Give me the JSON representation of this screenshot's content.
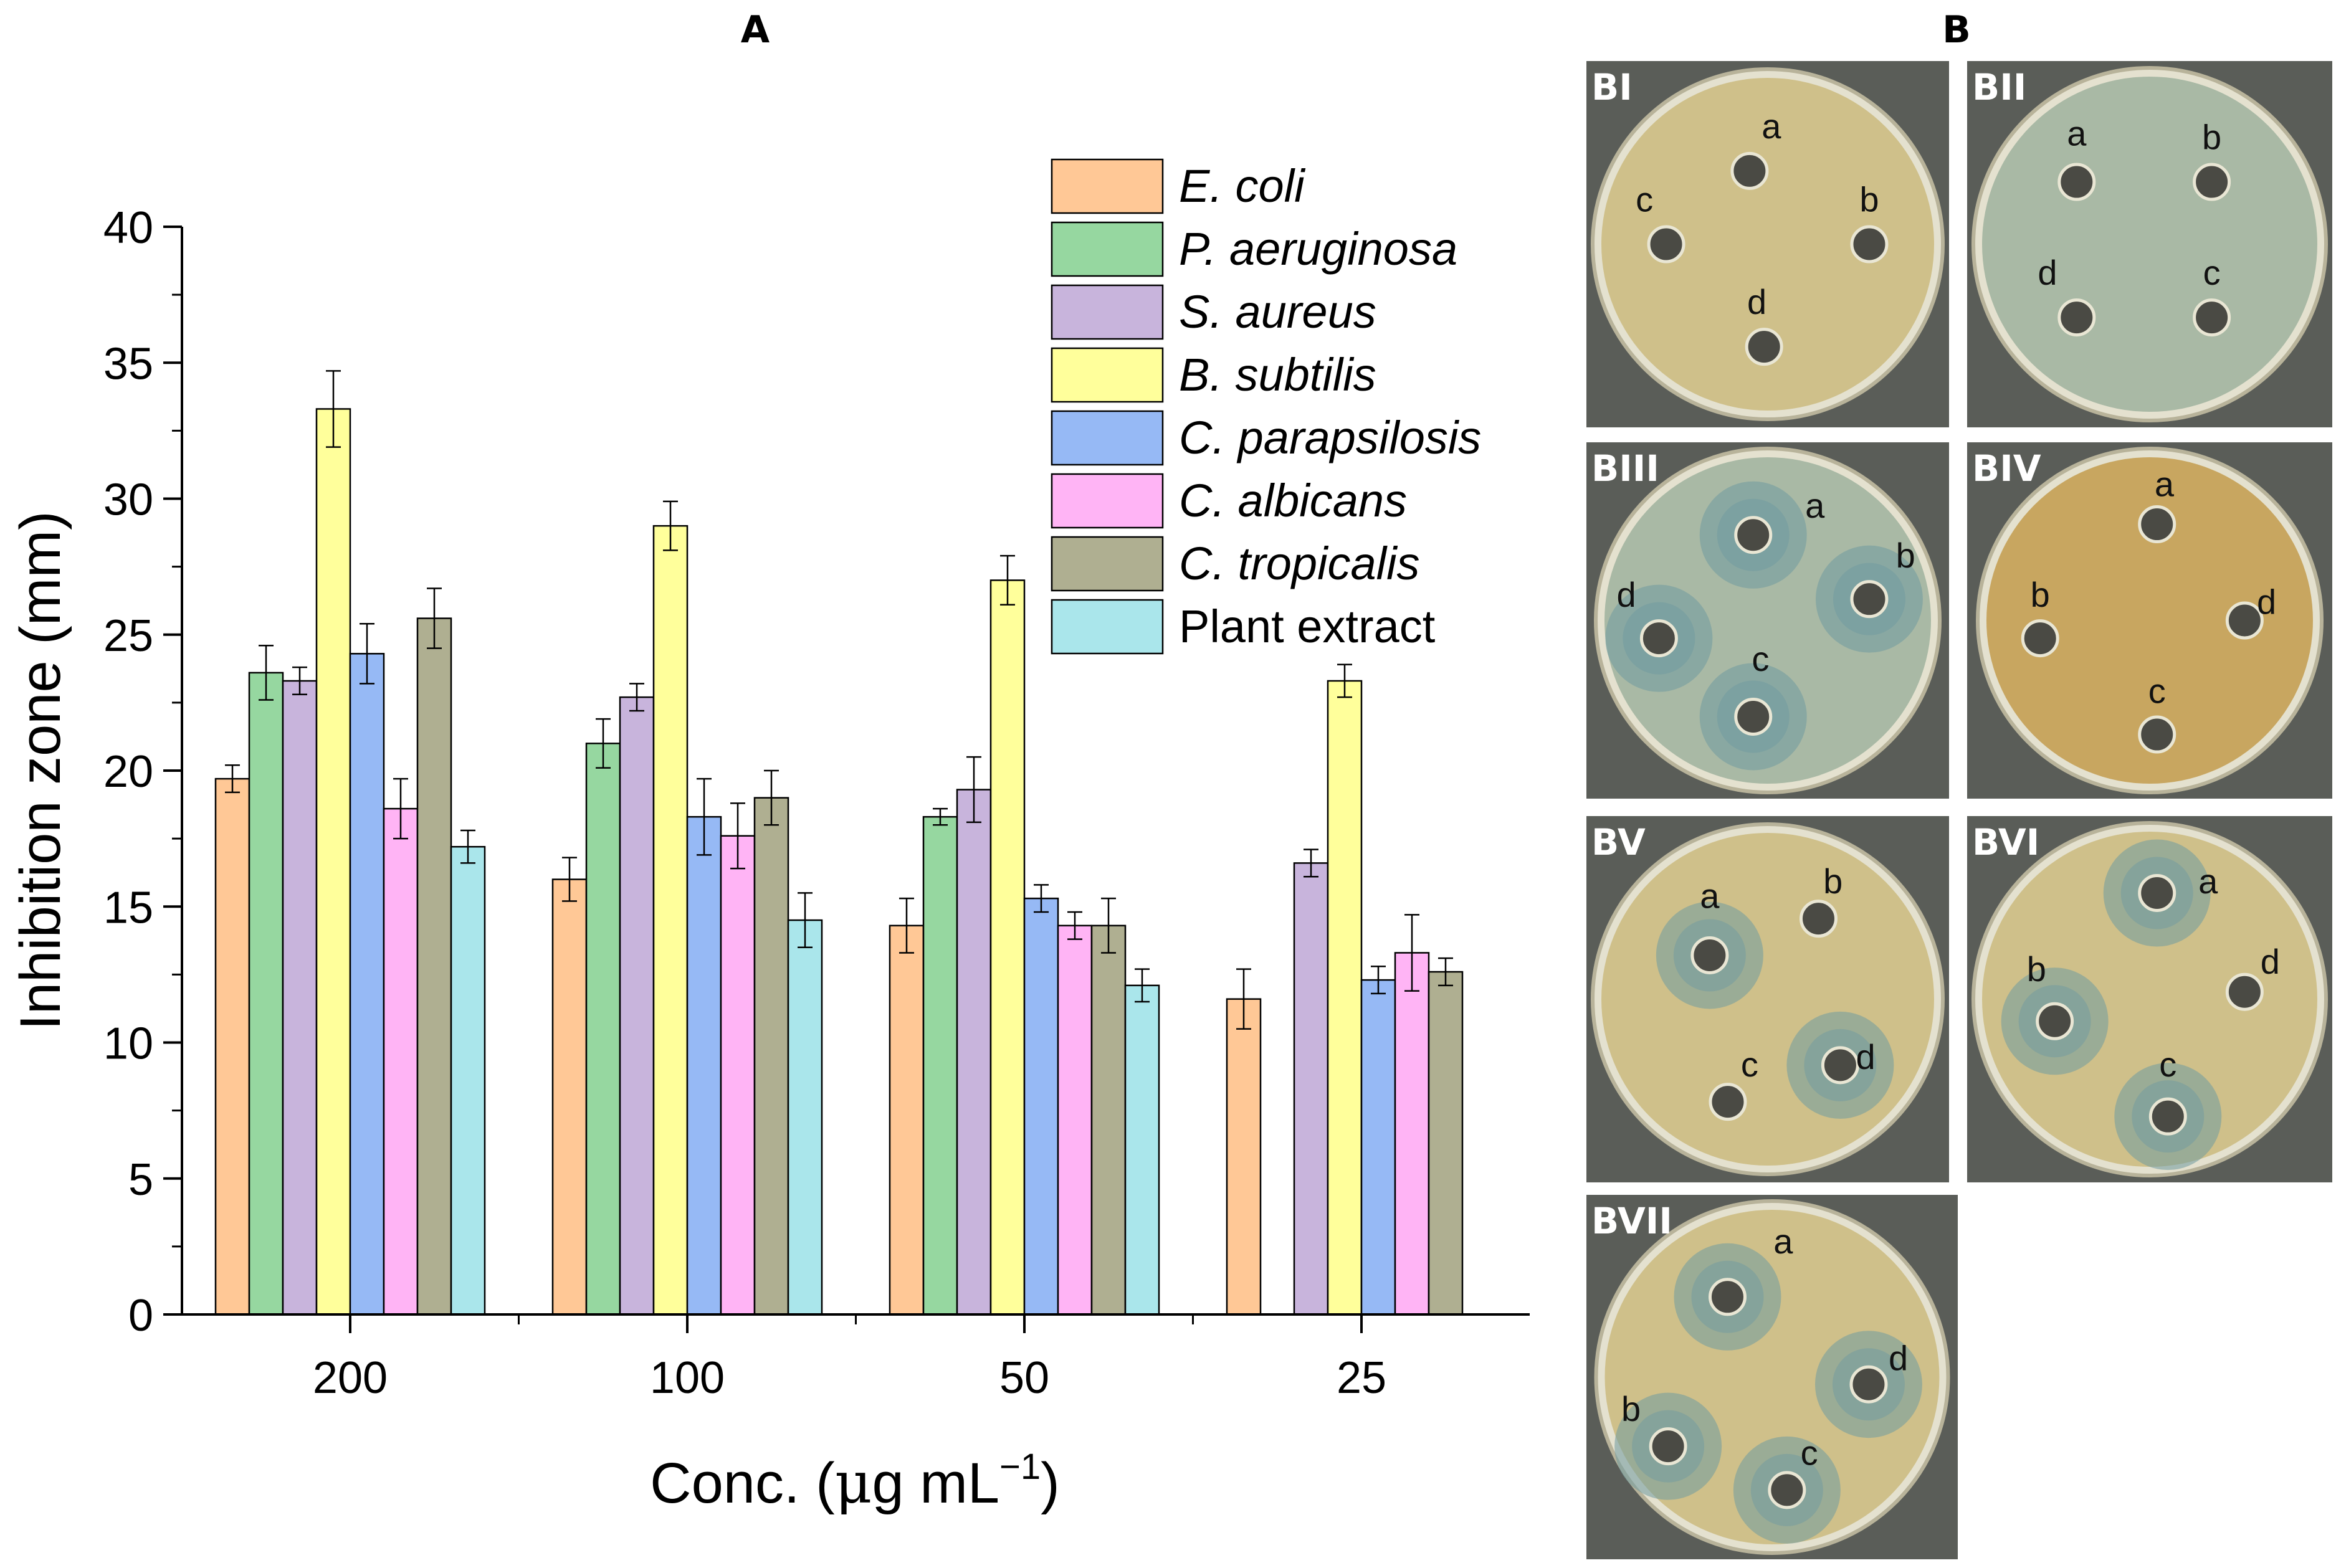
{
  "panels": {
    "a_letter": "A",
    "b_letter": "B"
  },
  "chart_data": {
    "type": "bar",
    "title": "",
    "xlabel": "Conc. (μg mL⁻¹)",
    "xlabel_parts": {
      "main": "Conc. (",
      "mu": "μ",
      "rest": "g mL",
      "sup": "−1",
      "close": ")"
    },
    "ylabel": "Inhibition zone (mm)",
    "ylim": [
      0,
      40
    ],
    "yticks": [
      "0",
      "5",
      "10",
      "15",
      "20",
      "25",
      "30",
      "35",
      "40"
    ],
    "categories": [
      "200",
      "100",
      "50",
      "25"
    ],
    "legend_position": "top-right",
    "grid": false,
    "error_bars": true,
    "series": [
      {
        "name": "E. coli",
        "italic": true,
        "color": "#FFC896",
        "values": [
          19.7,
          16.0,
          14.3,
          11.6
        ],
        "errors": [
          0.5,
          0.8,
          1.0,
          1.1
        ]
      },
      {
        "name": "P. aeruginosa",
        "italic": true,
        "color": "#96D7A0",
        "values": [
          23.6,
          21.0,
          18.3,
          null
        ],
        "errors": [
          1.0,
          0.9,
          0.3,
          null
        ]
      },
      {
        "name": "S. aureus",
        "italic": true,
        "color": "#C8B4DC",
        "values": [
          23.3,
          22.7,
          19.3,
          16.6
        ],
        "errors": [
          0.5,
          0.5,
          1.2,
          0.5
        ]
      },
      {
        "name": "B. subtilis",
        "italic": true,
        "color": "#FFFF9B",
        "values": [
          33.3,
          29.0,
          27.0,
          23.3
        ],
        "errors": [
          1.4,
          0.9,
          0.9,
          0.6
        ]
      },
      {
        "name": "C. parapsilosis",
        "italic": true,
        "color": "#96B9F5",
        "values": [
          24.3,
          18.3,
          15.3,
          12.3
        ],
        "errors": [
          1.1,
          1.4,
          0.5,
          0.5
        ]
      },
      {
        "name": "C. albicans",
        "italic": true,
        "color": "#FFB4F5",
        "values": [
          18.6,
          17.6,
          14.3,
          13.3
        ],
        "errors": [
          1.1,
          1.2,
          0.5,
          1.4
        ]
      },
      {
        "name": "C. tropicalis",
        "italic": true,
        "color": "#AFAF91",
        "values": [
          25.6,
          19.0,
          14.3,
          12.6
        ],
        "errors": [
          1.1,
          1.0,
          1.0,
          0.5
        ]
      },
      {
        "name": "Plant extract",
        "italic": false,
        "color": "#AAE6EB",
        "values": [
          17.2,
          14.5,
          12.1,
          null
        ],
        "errors": [
          0.6,
          1.0,
          0.6,
          null
        ]
      }
    ]
  },
  "plates": {
    "agar_colors": {
      "yellow": "#cfc08a",
      "teal": "#a9b9a5",
      "amber": "#c8a660",
      "background": "#5a5d58",
      "halo": "#6f9aa0"
    },
    "items": [
      {
        "label": "BI",
        "tone": "yellow",
        "wells": [
          {
            "letter": "a",
            "halo": false
          },
          {
            "letter": "b",
            "halo": false
          },
          {
            "letter": "c",
            "halo": false
          },
          {
            "letter": "d",
            "halo": false
          }
        ]
      },
      {
        "label": "BII",
        "tone": "teal",
        "wells": [
          {
            "letter": "a",
            "halo": false
          },
          {
            "letter": "b",
            "halo": false
          },
          {
            "letter": "d",
            "halo": false
          },
          {
            "letter": "c",
            "halo": false
          }
        ]
      },
      {
        "label": "BIII",
        "tone": "teal",
        "wells": [
          {
            "letter": "a",
            "halo": true
          },
          {
            "letter": "b",
            "halo": true
          },
          {
            "letter": "d",
            "halo": true
          },
          {
            "letter": "c",
            "halo": true
          }
        ]
      },
      {
        "label": "BIV",
        "tone": "amber",
        "wells": [
          {
            "letter": "a",
            "halo": false
          },
          {
            "letter": "b",
            "halo": false
          },
          {
            "letter": "d",
            "halo": false
          },
          {
            "letter": "c",
            "halo": false
          }
        ]
      },
      {
        "label": "BV",
        "tone": "yellow",
        "wells": [
          {
            "letter": "a",
            "halo": true
          },
          {
            "letter": "b",
            "halo": false
          },
          {
            "letter": "c",
            "halo": false
          },
          {
            "letter": "d",
            "halo": true
          }
        ]
      },
      {
        "label": "BVI",
        "tone": "yellow",
        "wells": [
          {
            "letter": "a",
            "halo": true
          },
          {
            "letter": "b",
            "halo": true
          },
          {
            "letter": "d",
            "halo": false
          },
          {
            "letter": "c",
            "halo": true
          }
        ]
      },
      {
        "label": "BVII",
        "tone": "yellow",
        "wells": [
          {
            "letter": "a",
            "halo": true
          },
          {
            "letter": "b",
            "halo": true
          },
          {
            "letter": "d",
            "halo": true
          },
          {
            "letter": "c",
            "halo": true
          }
        ]
      }
    ]
  }
}
